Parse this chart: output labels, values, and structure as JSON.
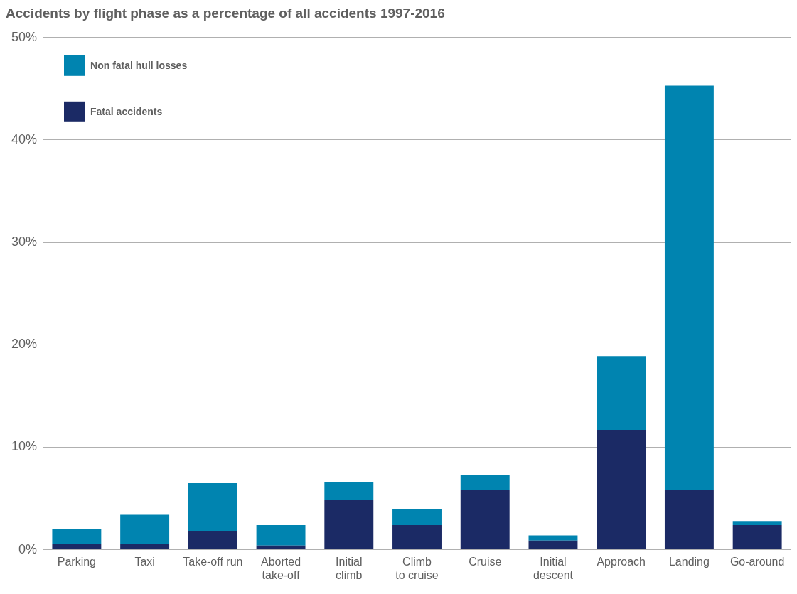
{
  "chart_data": {
    "type": "bar",
    "title": "Accidents by flight phase as a percentage of all accidents 1997-2016",
    "categories": [
      "Parking",
      "Taxi",
      "Take-off run",
      "Aborted take-off",
      "Initial climb",
      "Climb to cruise",
      "Cruise",
      "Initial descent",
      "Approach",
      "Landing",
      "Go-around"
    ],
    "series": [
      {
        "name": "Fatal accidents",
        "color": "#1b2a65",
        "values": [
          0.6,
          0.6,
          1.8,
          0.4,
          4.9,
          2.4,
          5.8,
          0.9,
          11.7,
          5.8,
          2.4
        ]
      },
      {
        "name": "Non fatal hull losses",
        "color": "#0084b0",
        "values": [
          1.4,
          2.8,
          4.7,
          2.0,
          1.7,
          1.6,
          1.5,
          0.5,
          7.2,
          39.5,
          0.4
        ]
      }
    ],
    "stacked": true,
    "ylim": [
      0,
      50
    ],
    "yticks": [
      {
        "value": 0,
        "label": "0%"
      },
      {
        "value": 10,
        "label": "10%"
      },
      {
        "value": 20,
        "label": "20%"
      },
      {
        "value": 30,
        "label": "30%"
      },
      {
        "value": 40,
        "label": "40%"
      },
      {
        "value": 50,
        "label": "50%"
      }
    ],
    "grid": "y",
    "legend": "top left"
  }
}
